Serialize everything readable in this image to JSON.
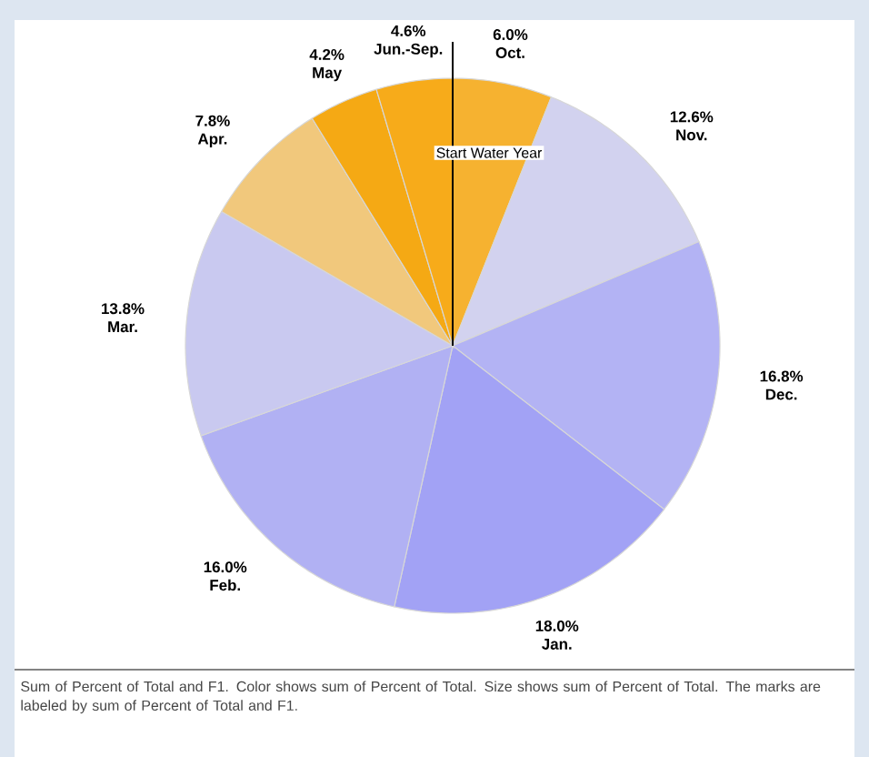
{
  "chart_data": {
    "type": "pie",
    "categories": [
      "Oct.",
      "Nov.",
      "Dec.",
      "Jan.",
      "Feb.",
      "Mar.",
      "Apr.",
      "May",
      "Jun.-Sep."
    ],
    "values": [
      6.0,
      12.6,
      16.8,
      18.0,
      16.0,
      13.8,
      7.8,
      4.2,
      4.6
    ],
    "value_labels": [
      "6.0%",
      "12.6%",
      "16.8%",
      "18.0%",
      "16.0%",
      "13.8%",
      "7.8%",
      "4.2%",
      "4.6%"
    ],
    "colors": [
      "#f6b230",
      "#d2d2ef",
      "#b3b3f4",
      "#a2a2f5",
      "#b1b1f3",
      "#c9c9f0",
      "#f1c87c",
      "#f5a914",
      "#f7ab1a"
    ],
    "annotations": [
      "Start Water Year",
      "Sum of Percent of Total and F1.  Color shows sum of Percent of Total.  Size shows sum of Percent of Total.  The marks are labeled by sum of Percent of Total and F1."
    ]
  }
}
